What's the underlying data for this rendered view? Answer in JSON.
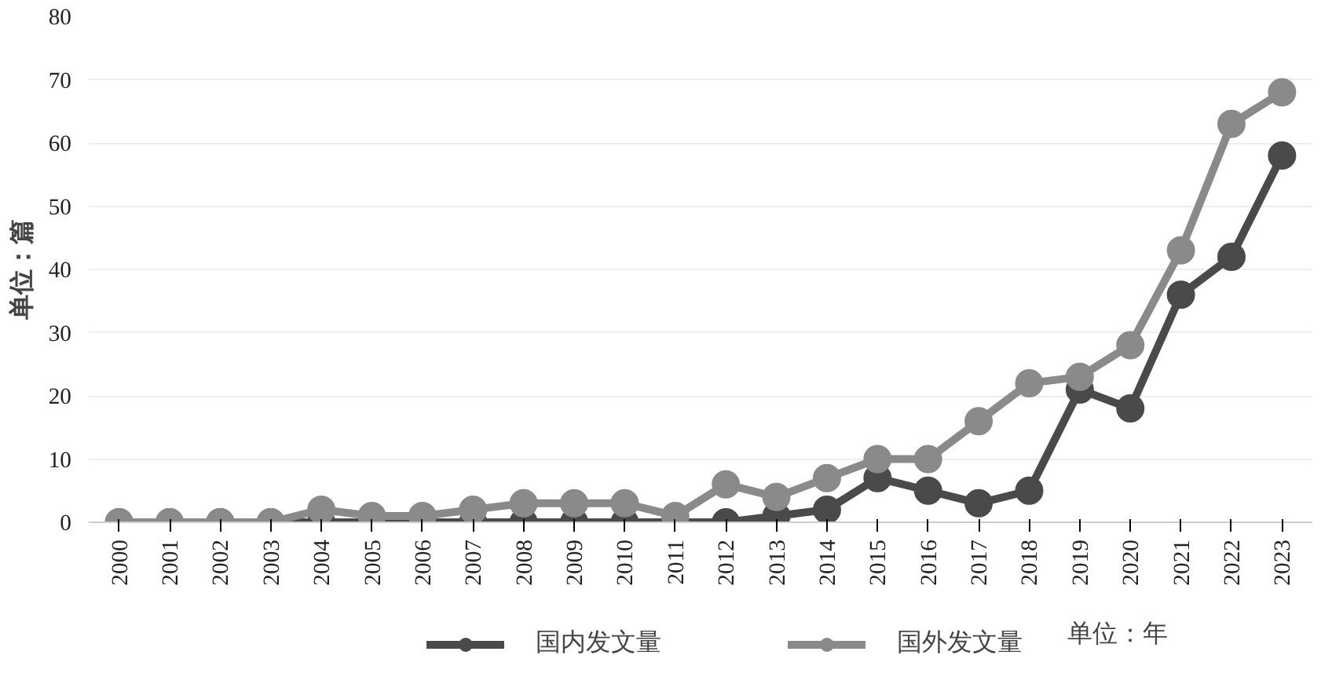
{
  "chart_data": {
    "type": "line",
    "ylabel": "单位：篇",
    "categories": [
      "2000",
      "2001",
      "2002",
      "2003",
      "2004",
      "2005",
      "2006",
      "2007",
      "2008",
      "2009",
      "2010",
      "2011",
      "2012",
      "2013",
      "2014",
      "2015",
      "2016",
      "2017",
      "2018",
      "2019",
      "2020",
      "2021",
      "2022",
      "2023"
    ],
    "series": [
      {
        "name": "国内发文量",
        "color": "#4a4a4a",
        "values": [
          0,
          0,
          0,
          0,
          0,
          0,
          0,
          0,
          0,
          0,
          0,
          0,
          0,
          1,
          2,
          7,
          5,
          3,
          5,
          21,
          18,
          36,
          42,
          58
        ]
      },
      {
        "name": "国外发文量",
        "color": "#8a8a8a",
        "values": [
          0,
          0,
          0,
          0,
          2,
          1,
          1,
          2,
          3,
          3,
          3,
          1,
          6,
          4,
          7,
          10,
          10,
          16,
          22,
          23,
          28,
          43,
          63,
          68
        ]
      }
    ],
    "ylim": [
      0,
      80
    ],
    "yticks": [
      0,
      10,
      20,
      30,
      40,
      50,
      60,
      70,
      80
    ],
    "grid": "y",
    "legend": "bottom",
    "marker": "circle",
    "line_style": "solid",
    "annotations": [
      "单位：年"
    ]
  }
}
